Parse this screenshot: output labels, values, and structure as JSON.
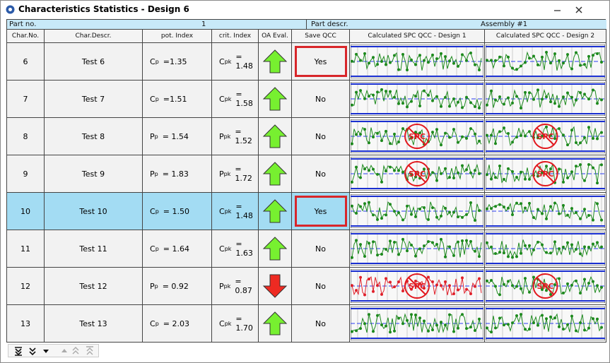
{
  "window": {
    "title": "Characteristics Statistics - Design 6"
  },
  "header": {
    "part_no_label": "Part no.",
    "part_no": "1",
    "part_descr_label": "Part descr.",
    "part_descr": "Assembly #1"
  },
  "columns": [
    "Char.No.",
    "Char.Descr.",
    "pot. Index",
    "crit. Index",
    "OA Eval.",
    "Save QCC",
    "Calculated SPC QCC - Design 1",
    "Calculated SPC QCC - Design 2"
  ],
  "spc_blocked_label": "SPC",
  "selected_row": 4,
  "rows": [
    {
      "no": "6",
      "descr": "Test 6",
      "pot_sym": "C",
      "pot_sub": "p",
      "pot": "=1.35",
      "crit_sym": "C",
      "crit_sub": "pk",
      "crit": "= 1.48",
      "eval": "up",
      "qcc": "Yes",
      "qcc_marked": true,
      "spc1_blocked": false,
      "spc2_blocked": false,
      "spc1_color": "green"
    },
    {
      "no": "7",
      "descr": "Test 7",
      "pot_sym": "C",
      "pot_sub": "p",
      "pot": "=1.51",
      "crit_sym": "C",
      "crit_sub": "pk",
      "crit": "= 1.58",
      "eval": "up",
      "qcc": "No",
      "qcc_marked": false,
      "spc1_blocked": false,
      "spc2_blocked": false,
      "spc1_color": "green"
    },
    {
      "no": "8",
      "descr": "Test 8",
      "pot_sym": "P",
      "pot_sub": "p",
      "pot": "= 1.54",
      "crit_sym": "P",
      "crit_sub": "pk",
      "crit": "= 1.52",
      "eval": "up",
      "qcc": "No",
      "qcc_marked": false,
      "spc1_blocked": true,
      "spc2_blocked": true,
      "spc1_color": "green"
    },
    {
      "no": "9",
      "descr": "Test 9",
      "pot_sym": "P",
      "pot_sub": "p",
      "pot": "= 1.83",
      "crit_sym": "P",
      "crit_sub": "pk",
      "crit": "= 1.72",
      "eval": "up",
      "qcc": "No",
      "qcc_marked": false,
      "spc1_blocked": true,
      "spc2_blocked": true,
      "spc1_color": "green"
    },
    {
      "no": "10",
      "descr": "Test 10",
      "pot_sym": "C",
      "pot_sub": "p",
      "pot": "= 1.50",
      "crit_sym": "C",
      "crit_sub": "pk",
      "crit": "= 1.48",
      "eval": "up",
      "qcc": "Yes",
      "qcc_marked": true,
      "spc1_blocked": false,
      "spc2_blocked": false,
      "spc1_color": "green"
    },
    {
      "no": "11",
      "descr": "Test 11",
      "pot_sym": "C",
      "pot_sub": "p",
      "pot": "= 1.64",
      "crit_sym": "C",
      "crit_sub": "pk",
      "crit": "= 1.63",
      "eval": "up",
      "qcc": "No",
      "qcc_marked": false,
      "spc1_blocked": false,
      "spc2_blocked": false,
      "spc1_color": "green"
    },
    {
      "no": "12",
      "descr": "Test 12",
      "pot_sym": "P",
      "pot_sub": "p",
      "pot": "= 0.92",
      "crit_sym": "P",
      "crit_sub": "pk",
      "crit": "= 0.87",
      "eval": "down",
      "qcc": "No",
      "qcc_marked": false,
      "spc1_blocked": true,
      "spc2_blocked": true,
      "spc1_color": "red"
    },
    {
      "no": "13",
      "descr": "Test 13",
      "pot_sym": "C",
      "pot_sub": "p",
      "pot": "= 2.03",
      "crit_sym": "C",
      "crit_sub": "pk",
      "crit": "= 1.70",
      "eval": "up",
      "qcc": "No",
      "qcc_marked": false,
      "spc1_blocked": false,
      "spc2_blocked": false,
      "spc1_color": "green"
    }
  ]
}
